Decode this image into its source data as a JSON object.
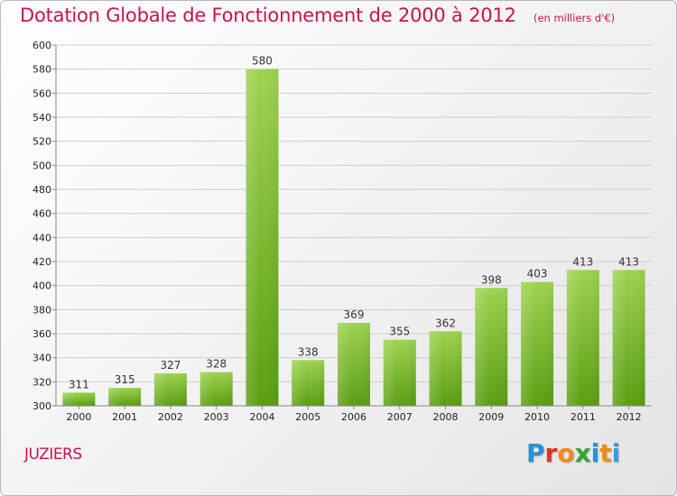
{
  "header": {
    "title": "Dotation Globale de Fonctionnement de 2000 à 2012",
    "unit": "(en milliers d'€)"
  },
  "footer": {
    "commune": "JUZIERS",
    "logo_text": "Proxiti"
  },
  "colors": {
    "title": "#c8134f",
    "bar_top": "#9ed34f",
    "bar_bottom": "#5a9e12",
    "grid": "#cfcfcf",
    "axis_text": "#222222"
  },
  "chart_data": {
    "type": "bar",
    "title": "Dotation Globale de Fonctionnement de 2000 à 2012",
    "subtitle": "(en milliers d'€)",
    "xlabel": "",
    "ylabel": "",
    "categories": [
      "2000",
      "2001",
      "2002",
      "2003",
      "2004",
      "2005",
      "2006",
      "2007",
      "2008",
      "2009",
      "2010",
      "2011",
      "2012"
    ],
    "values": [
      311,
      315,
      327,
      328,
      580,
      338,
      369,
      355,
      362,
      398,
      403,
      413,
      413
    ],
    "ylim": [
      300,
      600
    ],
    "yticks": [
      300,
      320,
      340,
      360,
      380,
      400,
      420,
      440,
      460,
      480,
      500,
      520,
      540,
      560,
      580,
      600
    ],
    "grid": true,
    "legend": "none"
  }
}
